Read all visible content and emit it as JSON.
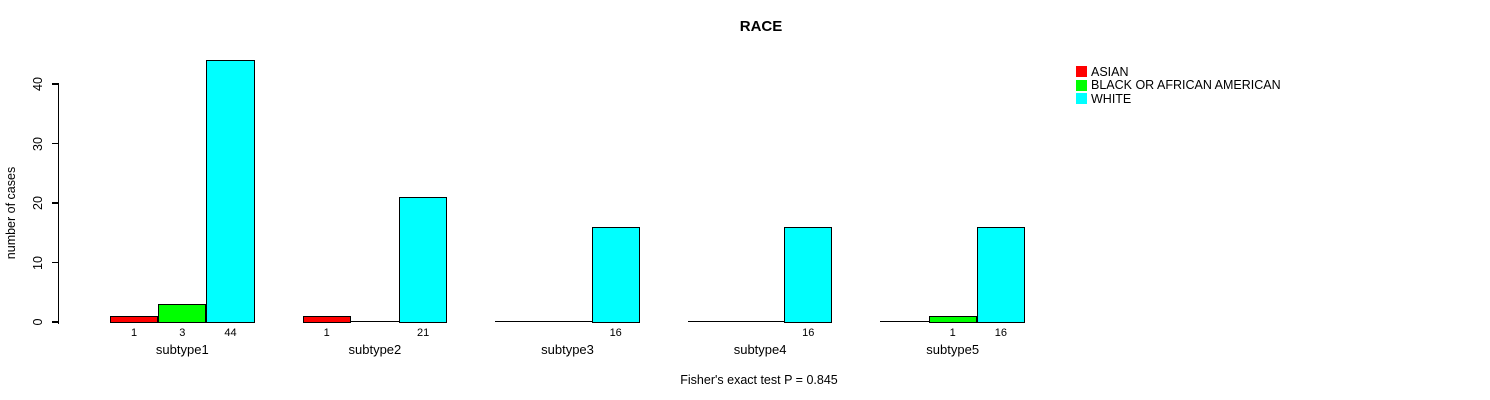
{
  "title": "RACE",
  "y_axis": {
    "label": "number of cases",
    "ticks": [
      0,
      10,
      20,
      30,
      40
    ]
  },
  "caption": "Fisher's exact test P = 0.845",
  "legend": {
    "items": [
      {
        "label": "ASIAN",
        "color": "#ff0000"
      },
      {
        "label": "BLACK OR AFRICAN AMERICAN",
        "color": "#00ff00"
      },
      {
        "label": "WHITE",
        "color": "#00ffff"
      }
    ]
  },
  "chart_data": {
    "type": "bar",
    "title": "RACE",
    "xlabel": "",
    "ylabel": "number of cases",
    "categories": [
      "subtype1",
      "subtype2",
      "subtype3",
      "subtype4",
      "subtype5"
    ],
    "series": [
      {
        "name": "ASIAN",
        "color": "#ff0000",
        "values": [
          1,
          1,
          0,
          0,
          0
        ]
      },
      {
        "name": "BLACK OR AFRICAN AMERICAN",
        "color": "#00ff00",
        "values": [
          3,
          0,
          0,
          0,
          1
        ]
      },
      {
        "name": "WHITE",
        "color": "#00ffff",
        "values": [
          44,
          21,
          16,
          16,
          16
        ]
      }
    ],
    "bar_value_labels_shown_only_for_nonzero": true,
    "ylim": [
      0,
      44
    ],
    "yticks": [
      0,
      10,
      20,
      30,
      40
    ],
    "grid": false,
    "legend_position": "top-right",
    "annotation": "Fisher's exact test P = 0.845"
  }
}
